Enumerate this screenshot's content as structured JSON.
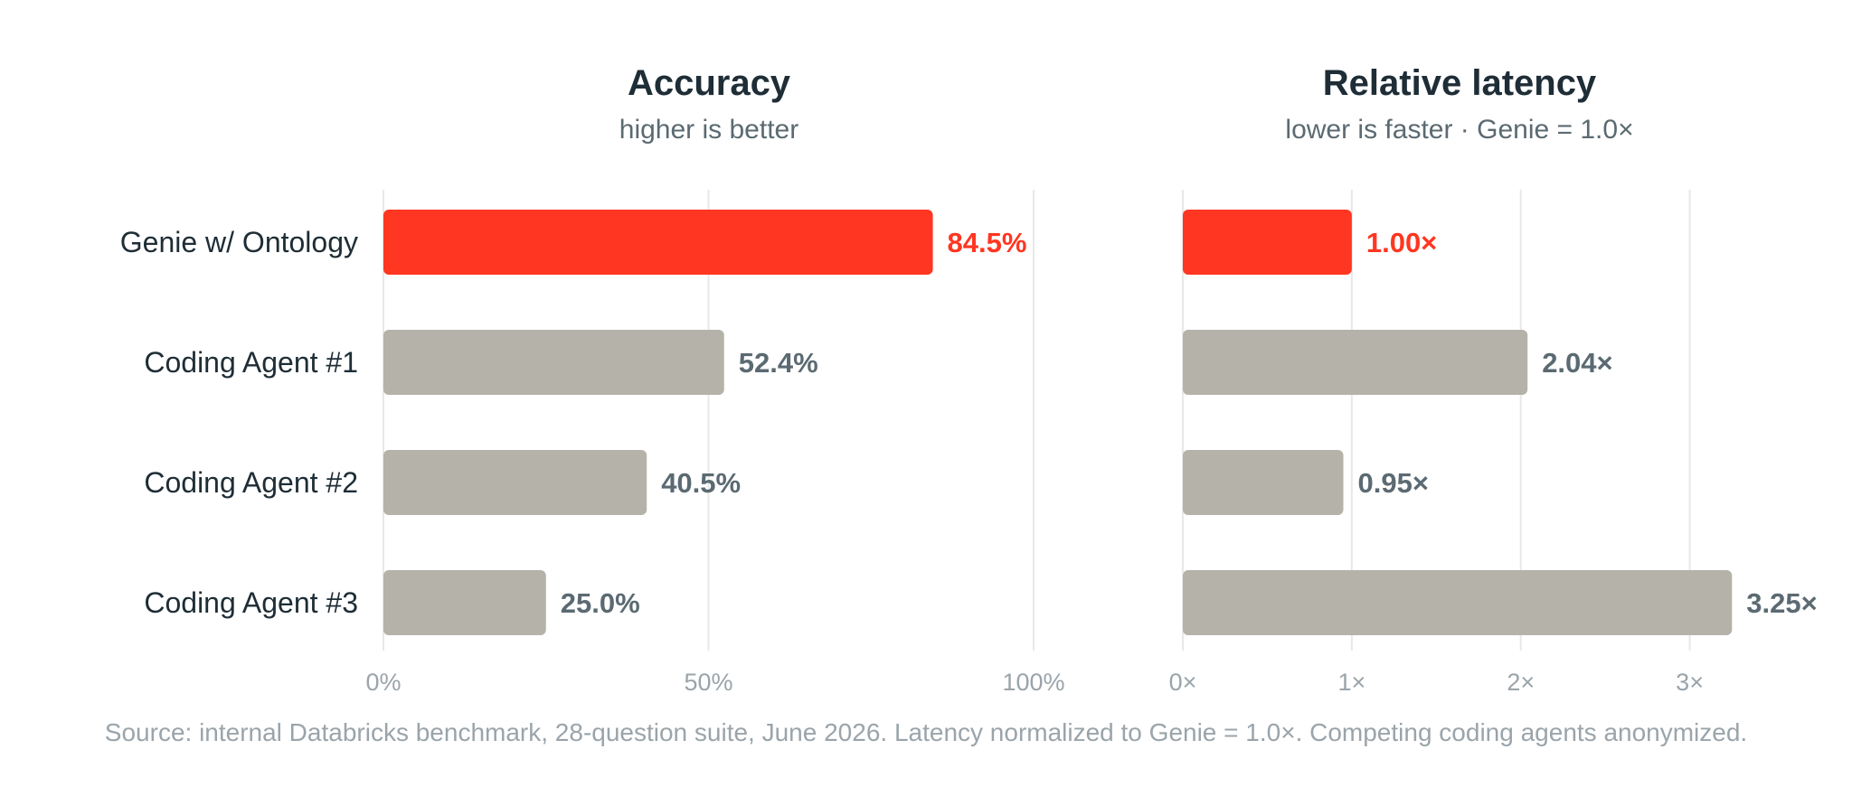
{
  "colors": {
    "highlight": "#ff3621",
    "neutral": "#b5b2aa",
    "label_neutral": "#5b6a72",
    "grid": "#e8e8e8"
  },
  "chart_data": [
    {
      "type": "bar",
      "orientation": "horizontal",
      "title": "Accuracy",
      "subtitle": "higher is better",
      "categories": [
        "Genie w/ Ontology",
        "Coding Agent #1",
        "Coding Agent #2",
        "Coding Agent #3"
      ],
      "values": [
        84.5,
        52.4,
        40.5,
        25.0
      ],
      "value_labels": [
        "84.5%",
        "52.4%",
        "40.5%",
        "25.0%"
      ],
      "xlim": [
        0,
        100
      ],
      "ticks": [
        0,
        50,
        100
      ],
      "tick_labels": [
        "0%",
        "50%",
        "100%"
      ],
      "highlight_index": 0,
      "grid": true
    },
    {
      "type": "bar",
      "orientation": "horizontal",
      "title": "Relative latency",
      "subtitle": "lower is faster · Genie = 1.0×",
      "categories": [
        "Genie w/ Ontology",
        "Coding Agent #1",
        "Coding Agent #2",
        "Coding Agent #3"
      ],
      "values": [
        1.0,
        2.04,
        0.95,
        3.25
      ],
      "value_labels": [
        "1.00×",
        "2.04×",
        "0.95×",
        "3.25×"
      ],
      "xlim": [
        0,
        3.5
      ],
      "ticks": [
        0,
        1,
        2,
        3
      ],
      "tick_labels": [
        "0×",
        "1×",
        "2×",
        "3×"
      ],
      "highlight_index": 0,
      "grid": true
    }
  ],
  "source_note": "Source: internal Databricks benchmark, 28-question suite, June 2026. Latency normalized to Genie = 1.0×. Competing coding agents anonymized."
}
